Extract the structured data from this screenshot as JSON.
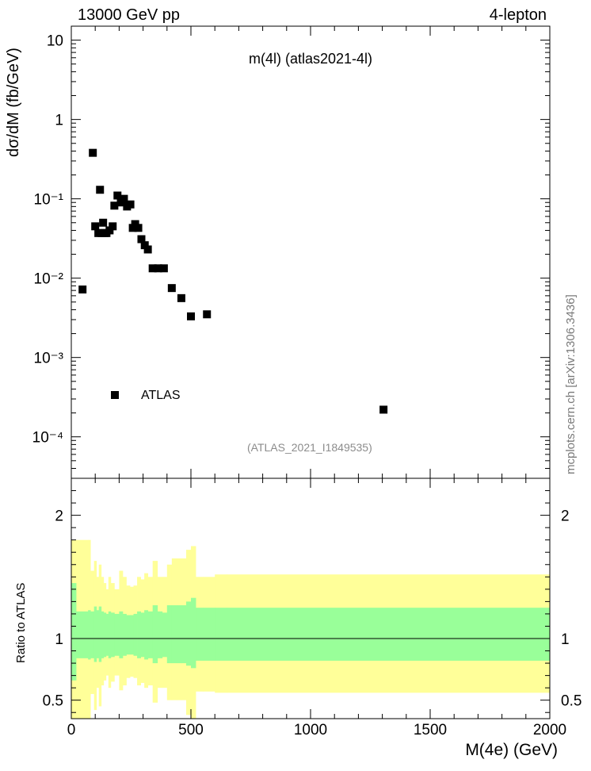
{
  "header": {
    "left": "13000 GeV pp",
    "right": "4-lepton"
  },
  "side_note": "mcplots.cern.ch [arXiv:1306.3436]",
  "chart_data": [
    {
      "type": "scatter",
      "title": "m(4l) (atlas2021-4l)",
      "reference": "(ATLAS_2021_I1849535)",
      "xlabel": "M(4e) (GeV)",
      "ylabel": "dσ/dM (fb/GeV)",
      "yscale": "log",
      "xlim": [
        0,
        2000
      ],
      "ylim": [
        3e-05,
        15
      ],
      "legend": [
        {
          "name": "ATLAS",
          "marker": "square",
          "color": "#000000"
        }
      ],
      "legend_placement": "bottom-left",
      "y_ticks": [
        {
          "value": 10,
          "label": "10"
        },
        {
          "value": 1,
          "label": "1"
        },
        {
          "value": 0.1,
          "label": "10⁻¹"
        },
        {
          "value": 0.01,
          "label": "10⁻²"
        },
        {
          "value": 0.001,
          "label": "10⁻³"
        },
        {
          "value": 0.0001,
          "label": "10⁻⁴"
        }
      ],
      "series": [
        {
          "name": "ATLAS",
          "x": [
            47,
            90,
            100,
            113,
            120,
            127,
            133,
            140,
            147,
            160,
            173,
            180,
            193,
            207,
            220,
            233,
            247,
            257,
            267,
            280,
            293,
            307,
            320,
            340,
            363,
            387,
            420,
            460,
            500,
            567,
            1305
          ],
          "y": [
            0.0072,
            0.38,
            0.045,
            0.037,
            0.13,
            0.037,
            0.05,
            0.037,
            0.037,
            0.04,
            0.045,
            0.082,
            0.11,
            0.09,
            0.1,
            0.08,
            0.085,
            0.043,
            0.048,
            0.043,
            0.031,
            0.026,
            0.023,
            0.0133,
            0.0133,
            0.0133,
            0.0075,
            0.0056,
            0.0033,
            0.0035,
            0.00022
          ]
        }
      ]
    },
    {
      "type": "area",
      "ylabel": "Ratio to ATLAS",
      "xlabel": "M(4e) (GeV)",
      "xlim": [
        0,
        2000
      ],
      "ylim": [
        0.35,
        2.3
      ],
      "x_ticks": [
        "0",
        "500",
        "1000",
        "1500",
        "2000"
      ],
      "y_ticks": [
        "0.5",
        "1",
        "2"
      ],
      "reference_line": 1,
      "bins": [
        0,
        20,
        70,
        80,
        95,
        105,
        115,
        125,
        135,
        145,
        155,
        165,
        180,
        200,
        215,
        230,
        245,
        260,
        275,
        290,
        305,
        320,
        340,
        360,
        380,
        400,
        420,
        440,
        460,
        480,
        500,
        520,
        550,
        600,
        650,
        2000
      ],
      "band_inner": {
        "color": "#99ff99",
        "low": [
          0.66,
          0.84,
          0.83,
          0.84,
          0.81,
          0.84,
          0.81,
          0.84,
          0.85,
          0.86,
          0.84,
          0.85,
          0.86,
          0.84,
          0.86,
          0.87,
          0.87,
          0.86,
          0.84,
          0.85,
          0.83,
          0.84,
          0.8,
          0.84,
          0.85,
          0.8,
          0.8,
          0.8,
          0.8,
          0.78,
          0.76,
          0.82,
          0.82,
          0.82,
          0.82
        ],
        "high": [
          1.45,
          1.22,
          1.23,
          1.22,
          1.26,
          1.23,
          1.26,
          1.22,
          1.21,
          1.2,
          1.22,
          1.21,
          1.2,
          1.22,
          1.2,
          1.19,
          1.19,
          1.2,
          1.22,
          1.21,
          1.23,
          1.22,
          1.27,
          1.22,
          1.21,
          1.27,
          1.27,
          1.27,
          1.27,
          1.3,
          1.33,
          1.25,
          1.25,
          1.25,
          1.25
        ]
      },
      "band_outer": {
        "color": "#ffff99",
        "low": [
          0.35,
          0.35,
          0.35,
          0.55,
          0.42,
          0.6,
          0.45,
          0.62,
          0.66,
          0.7,
          0.6,
          0.65,
          0.7,
          0.58,
          0.62,
          0.68,
          0.69,
          0.68,
          0.62,
          0.64,
          0.6,
          0.62,
          0.48,
          0.6,
          0.6,
          0.5,
          0.5,
          0.5,
          0.5,
          0.38,
          0.35,
          0.57,
          0.57,
          0.56,
          0.56
        ],
        "high": [
          1.8,
          1.8,
          1.8,
          1.55,
          1.63,
          1.5,
          1.6,
          1.5,
          1.45,
          1.4,
          1.5,
          1.45,
          1.4,
          1.55,
          1.5,
          1.43,
          1.42,
          1.43,
          1.5,
          1.48,
          1.53,
          1.5,
          1.63,
          1.5,
          1.5,
          1.6,
          1.65,
          1.65,
          1.65,
          1.72,
          1.75,
          1.5,
          1.5,
          1.52,
          1.52
        ]
      }
    }
  ]
}
